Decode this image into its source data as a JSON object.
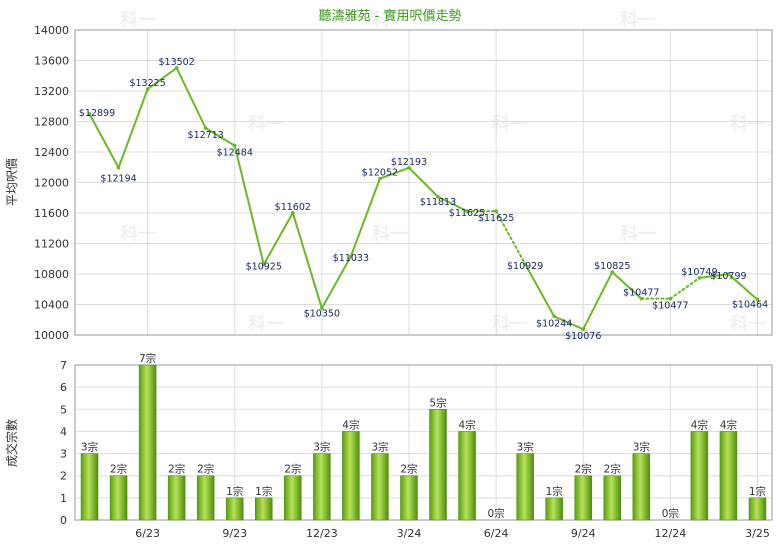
{
  "chart_data": [
    {
      "type": "line",
      "title": "聽濤雅苑 - 實用呎價走勢",
      "ylabel": "平均呎價",
      "ylim": [
        10000,
        14000
      ],
      "yticks": [
        10000,
        10400,
        10800,
        11200,
        11600,
        12000,
        12400,
        12800,
        13200,
        13600,
        14000
      ],
      "grid": true,
      "series": [
        {
          "values": [
            12899,
            12194,
            13225,
            13502,
            12713,
            12484,
            10925,
            11602,
            10350,
            11033,
            12052,
            12193,
            11813,
            11625,
            11625,
            10929,
            10244,
            10076,
            10825,
            10477,
            10477,
            10749,
            10799,
            10464
          ],
          "labels": [
            "$12899",
            "$12194",
            "$13225",
            "$13502",
            "$12713",
            "$12484",
            "$10925",
            "$11602",
            "$10350",
            "$11033",
            "$12052",
            "$12193",
            "$11813",
            "$11625",
            "$11625",
            "$10929",
            "$10244",
            "$10076",
            "$10825",
            "$10477",
            "$10477",
            "$10749",
            "$10799",
            "$10464"
          ],
          "no_transaction_months": [
            14,
            20
          ],
          "color": "#66bb22"
        }
      ]
    },
    {
      "type": "bar",
      "ylabel": "成交宗數",
      "ylim": [
        0,
        7
      ],
      "yticks": [
        0,
        1,
        2,
        3,
        4,
        5,
        6,
        7
      ],
      "grid": true,
      "categories": [
        "4/23",
        "5/23",
        "6/23",
        "7/23",
        "8/23",
        "9/23",
        "10/23",
        "11/23",
        "12/23",
        "1/24",
        "2/24",
        "3/24",
        "4/24",
        "5/24",
        "6/24",
        "7/24",
        "8/24",
        "9/24",
        "10/24",
        "11/24",
        "12/24",
        "1/25",
        "2/25",
        "3/25"
      ],
      "xtick_labels": [
        "",
        "",
        "6/23",
        "",
        "",
        "9/23",
        "",
        "",
        "12/23",
        "",
        "",
        "3/24",
        "",
        "",
        "6/24",
        "",
        "",
        "9/24",
        "",
        "",
        "12/24",
        "",
        "",
        "3/25"
      ],
      "values": [
        3,
        2,
        7,
        2,
        2,
        1,
        1,
        2,
        3,
        4,
        3,
        2,
        5,
        4,
        0,
        3,
        1,
        2,
        2,
        3,
        0,
        4,
        4,
        1
      ],
      "labels": [
        "3宗",
        "2宗",
        "7宗",
        "2宗",
        "2宗",
        "1宗",
        "1宗",
        "2宗",
        "3宗",
        "4宗",
        "3宗",
        "2宗",
        "5宗",
        "4宗",
        "0宗",
        "3宗",
        "1宗",
        "2宗",
        "2宗",
        "3宗",
        "0宗",
        "4宗",
        "4宗",
        "1宗"
      ],
      "color": "#77bb22"
    }
  ],
  "watermark": "科一"
}
